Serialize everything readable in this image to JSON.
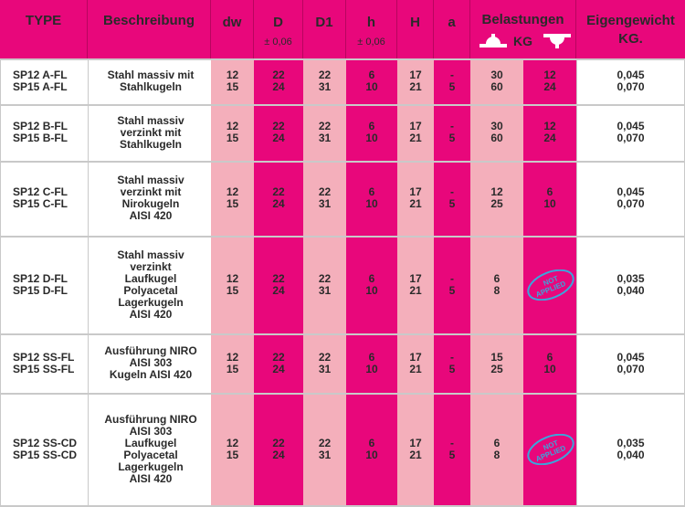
{
  "header": {
    "type": "TYPE",
    "beschreibung": "Beschreibung",
    "dw": "dw",
    "D": "D",
    "D_tol": "± 0,06",
    "D1": "D1",
    "h": "h",
    "h_tol": "± 0,06",
    "H": "H",
    "a": "a",
    "belastungen": "Belastungen",
    "belastungen_unit": "KG",
    "eigengewicht": "Eigengewicht",
    "eigengewicht_unit": "KG."
  },
  "not_applied": {
    "line1": "NOT",
    "line2": "APPLIED"
  },
  "colors": {
    "magenta": "#e8077b",
    "light_pink": "#f4afbb",
    "stamp_blue": "#3aa6dc"
  },
  "rows": [
    {
      "type1": "SP12 A-FL",
      "type2": "SP15 A-FL",
      "desc": [
        "Stahl massiv mit",
        "Stahlkugeln"
      ],
      "dw": [
        "12",
        "15"
      ],
      "D": [
        "22",
        "24"
      ],
      "D1": [
        "22",
        "31"
      ],
      "h": [
        "6",
        "10"
      ],
      "H": [
        "17",
        "21"
      ],
      "a": [
        "-",
        "5"
      ],
      "load1": [
        "30",
        "60"
      ],
      "load2": [
        "12",
        "24"
      ],
      "weight": [
        "0,045",
        "0,070"
      ]
    },
    {
      "type1": "SP12 B-FL",
      "type2": "SP15 B-FL",
      "desc": [
        "Stahl massiv",
        "verzinkt mit",
        "Stahlkugeln"
      ],
      "dw": [
        "12",
        "15"
      ],
      "D": [
        "22",
        "24"
      ],
      "D1": [
        "22",
        "31"
      ],
      "h": [
        "6",
        "10"
      ],
      "H": [
        "17",
        "21"
      ],
      "a": [
        "-",
        "5"
      ],
      "load1": [
        "30",
        "60"
      ],
      "load2": [
        "12",
        "24"
      ],
      "weight": [
        "0,045",
        "0,070"
      ]
    },
    {
      "type1": "SP12 C-FL",
      "type2": "SP15 C-FL",
      "desc": [
        "Stahl massiv",
        "verzinkt mit",
        "Nirokugeln",
        "AISI 420"
      ],
      "dw": [
        "12",
        "15"
      ],
      "D": [
        "22",
        "24"
      ],
      "D1": [
        "22",
        "31"
      ],
      "h": [
        "6",
        "10"
      ],
      "H": [
        "17",
        "21"
      ],
      "a": [
        "-",
        "5"
      ],
      "load1": [
        "12",
        "25"
      ],
      "load2": [
        "6",
        "10"
      ],
      "weight": [
        "0,045",
        "0,070"
      ]
    },
    {
      "type1": "SP12 D-FL",
      "type2": "SP15 D-FL",
      "desc": [
        "Stahl massiv",
        "verzinkt",
        "Laufkugel",
        "Polyacetal",
        "Lagerkugeln",
        "AISI 420"
      ],
      "dw": [
        "12",
        "15"
      ],
      "D": [
        "22",
        "24"
      ],
      "D1": [
        "22",
        "31"
      ],
      "h": [
        "6",
        "10"
      ],
      "H": [
        "17",
        "21"
      ],
      "a": [
        "-",
        "5"
      ],
      "load1": [
        "6",
        "8"
      ],
      "load2": null,
      "weight": [
        "0,035",
        "0,040"
      ]
    },
    {
      "type1": "SP12 SS-FL",
      "type2": "SP15 SS-FL",
      "desc": [
        "Ausführung NIRO",
        "AISI 303",
        "Kugeln AISI 420"
      ],
      "dw": [
        "12",
        "15"
      ],
      "D": [
        "22",
        "24"
      ],
      "D1": [
        "22",
        "31"
      ],
      "h": [
        "6",
        "10"
      ],
      "H": [
        "17",
        "21"
      ],
      "a": [
        "-",
        "5"
      ],
      "load1": [
        "15",
        "25"
      ],
      "load2": [
        "6",
        "10"
      ],
      "weight": [
        "0,045",
        "0,070"
      ]
    },
    {
      "type1": "SP12 SS-CD",
      "type2": "SP15 SS-CD",
      "desc": [
        "Ausführung NIRO",
        "AISI 303",
        "Laufkugel",
        "Polyacetal",
        "Lagerkugeln",
        "AISI 420"
      ],
      "dw": [
        "12",
        "15"
      ],
      "D": [
        "22",
        "24"
      ],
      "D1": [
        "22",
        "31"
      ],
      "h": [
        "6",
        "10"
      ],
      "H": [
        "17",
        "21"
      ],
      "a": [
        "-",
        "5"
      ],
      "load1": [
        "6",
        "8"
      ],
      "load2": null,
      "weight": [
        "0,035",
        "0,040"
      ]
    }
  ]
}
